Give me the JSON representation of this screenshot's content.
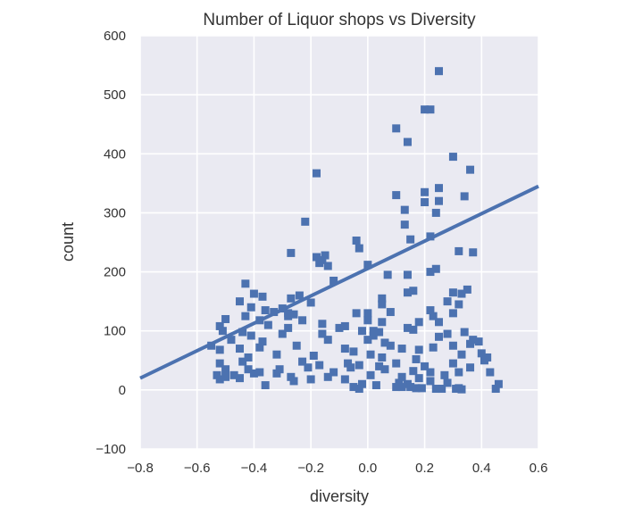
{
  "chart_data": {
    "type": "scatter",
    "title": "Number of Liquor shops vs Diversity",
    "xlabel": "diversity",
    "ylabel": "count",
    "xlim": [
      -0.8,
      0.6
    ],
    "ylim": [
      -100,
      600
    ],
    "xticks": [
      "−0.8",
      "−0.6",
      "−0.4",
      "−0.2",
      "0.0",
      "0.2",
      "0.4",
      "0.6"
    ],
    "yticks": [
      "−100",
      "0",
      "100",
      "200",
      "300",
      "400",
      "500",
      "600"
    ],
    "grid": true,
    "background_color": "#EAEAF2",
    "marker_color": "#4C72B0",
    "marker": "square",
    "regression_line": {
      "x": [
        -0.8,
        0.6
      ],
      "y": [
        20,
        345
      ]
    },
    "points": [
      [
        0.25,
        540
      ],
      [
        0.1,
        443
      ],
      [
        0.2,
        475
      ],
      [
        0.22,
        475
      ],
      [
        0.14,
        420
      ],
      [
        0.3,
        395
      ],
      [
        0.36,
        373
      ],
      [
        -0.18,
        367
      ],
      [
        0.1,
        330
      ],
      [
        0.2,
        335
      ],
      [
        0.25,
        342
      ],
      [
        0.34,
        328
      ],
      [
        0.13,
        305
      ],
      [
        0.2,
        318
      ],
      [
        0.25,
        320
      ],
      [
        0.24,
        300
      ],
      [
        -0.22,
        285
      ],
      [
        0.13,
        280
      ],
      [
        0.15,
        255
      ],
      [
        -0.04,
        253
      ],
      [
        0.22,
        260
      ],
      [
        -0.03,
        240
      ],
      [
        0.32,
        235
      ],
      [
        -0.27,
        232
      ],
      [
        0.37,
        233
      ],
      [
        -0.18,
        225
      ],
      [
        -0.15,
        228
      ],
      [
        -0.16,
        220
      ],
      [
        -0.17,
        215
      ],
      [
        0.0,
        212
      ],
      [
        -0.14,
        210
      ],
      [
        0.07,
        195
      ],
      [
        0.14,
        195
      ],
      [
        0.22,
        200
      ],
      [
        0.24,
        205
      ],
      [
        -0.43,
        180
      ],
      [
        -0.12,
        185
      ],
      [
        0.35,
        170
      ],
      [
        -0.4,
        163
      ],
      [
        -0.37,
        158
      ],
      [
        -0.27,
        155
      ],
      [
        0.3,
        165
      ],
      [
        0.33,
        163
      ],
      [
        0.16,
        168
      ],
      [
        0.14,
        165
      ],
      [
        -0.24,
        160
      ],
      [
        -0.45,
        150
      ],
      [
        0.05,
        155
      ],
      [
        0.28,
        150
      ],
      [
        -0.2,
        148
      ],
      [
        -0.41,
        140
      ],
      [
        0.05,
        145
      ],
      [
        0.32,
        145
      ],
      [
        -0.3,
        138
      ],
      [
        -0.36,
        135
      ],
      [
        -0.33,
        132
      ],
      [
        -0.28,
        130
      ],
      [
        0.22,
        135
      ],
      [
        0.3,
        130
      ],
      [
        -0.5,
        120
      ],
      [
        -0.43,
        125
      ],
      [
        -0.28,
        125
      ],
      [
        -0.26,
        128
      ],
      [
        -0.04,
        130
      ],
      [
        0.0,
        130
      ],
      [
        0.08,
        132
      ],
      [
        0.23,
        125
      ],
      [
        -0.38,
        118
      ],
      [
        -0.23,
        118
      ],
      [
        -0.16,
        112
      ],
      [
        0.0,
        118
      ],
      [
        0.05,
        115
      ],
      [
        0.18,
        115
      ],
      [
        0.25,
        115
      ],
      [
        -0.52,
        108
      ],
      [
        -0.35,
        110
      ],
      [
        -0.28,
        105
      ],
      [
        -0.08,
        108
      ],
      [
        -0.1,
        105
      ],
      [
        -0.02,
        100
      ],
      [
        0.02,
        100
      ],
      [
        0.14,
        105
      ],
      [
        0.16,
        102
      ],
      [
        -0.51,
        100
      ],
      [
        -0.44,
        98
      ],
      [
        -0.3,
        95
      ],
      [
        -0.16,
        95
      ],
      [
        0.02,
        92
      ],
      [
        0.04,
        98
      ],
      [
        0.28,
        95
      ],
      [
        0.34,
        98
      ],
      [
        -0.48,
        85
      ],
      [
        -0.41,
        92
      ],
      [
        -0.37,
        82
      ],
      [
        -0.14,
        85
      ],
      [
        0.0,
        85
      ],
      [
        0.06,
        80
      ],
      [
        0.25,
        90
      ],
      [
        0.37,
        85
      ],
      [
        0.39,
        82
      ],
      [
        -0.55,
        75
      ],
      [
        -0.45,
        70
      ],
      [
        -0.38,
        72
      ],
      [
        -0.25,
        75
      ],
      [
        -0.08,
        70
      ],
      [
        -0.05,
        65
      ],
      [
        0.08,
        75
      ],
      [
        0.12,
        70
      ],
      [
        0.18,
        68
      ],
      [
        0.23,
        72
      ],
      [
        0.3,
        75
      ],
      [
        0.36,
        78
      ],
      [
        0.4,
        62
      ],
      [
        -0.52,
        68
      ],
      [
        -0.42,
        55
      ],
      [
        -0.32,
        60
      ],
      [
        -0.19,
        58
      ],
      [
        0.01,
        60
      ],
      [
        0.05,
        55
      ],
      [
        0.17,
        52
      ],
      [
        0.33,
        60
      ],
      [
        0.41,
        50
      ],
      [
        0.42,
        55
      ],
      [
        -0.52,
        45
      ],
      [
        -0.44,
        48
      ],
      [
        -0.23,
        48
      ],
      [
        -0.17,
        42
      ],
      [
        -0.07,
        45
      ],
      [
        -0.03,
        42
      ],
      [
        0.04,
        40
      ],
      [
        0.1,
        45
      ],
      [
        0.2,
        40
      ],
      [
        0.3,
        45
      ],
      [
        0.36,
        38
      ],
      [
        -0.5,
        35
      ],
      [
        -0.42,
        35
      ],
      [
        -0.38,
        30
      ],
      [
        -0.31,
        35
      ],
      [
        -0.21,
        38
      ],
      [
        -0.12,
        30
      ],
      [
        -0.06,
        38
      ],
      [
        0.06,
        35
      ],
      [
        0.16,
        32
      ],
      [
        0.22,
        30
      ],
      [
        0.32,
        30
      ],
      [
        0.43,
        30
      ],
      [
        -0.53,
        25
      ],
      [
        -0.47,
        25
      ],
      [
        -0.4,
        28
      ],
      [
        -0.32,
        28
      ],
      [
        -0.27,
        22
      ],
      [
        -0.14,
        22
      ],
      [
        0.01,
        25
      ],
      [
        0.12,
        22
      ],
      [
        0.18,
        20
      ],
      [
        0.27,
        25
      ],
      [
        -0.52,
        18
      ],
      [
        -0.5,
        22
      ],
      [
        -0.45,
        20
      ],
      [
        -0.26,
        15
      ],
      [
        -0.2,
        18
      ],
      [
        -0.08,
        18
      ],
      [
        0.11,
        12
      ],
      [
        0.14,
        10
      ],
      [
        0.22,
        15
      ],
      [
        0.28,
        12
      ],
      [
        -0.36,
        8
      ],
      [
        -0.05,
        5
      ],
      [
        -0.02,
        10
      ],
      [
        0.03,
        8
      ],
      [
        0.15,
        5
      ],
      [
        0.17,
        3
      ],
      [
        0.19,
        3
      ],
      [
        0.24,
        2
      ],
      [
        0.26,
        2
      ],
      [
        0.31,
        2
      ],
      [
        0.32,
        3
      ],
      [
        0.33,
        1
      ],
      [
        0.45,
        2
      ],
      [
        0.46,
        10
      ],
      [
        0.12,
        5
      ],
      [
        -0.03,
        2
      ],
      [
        0.1,
        5
      ]
    ]
  }
}
